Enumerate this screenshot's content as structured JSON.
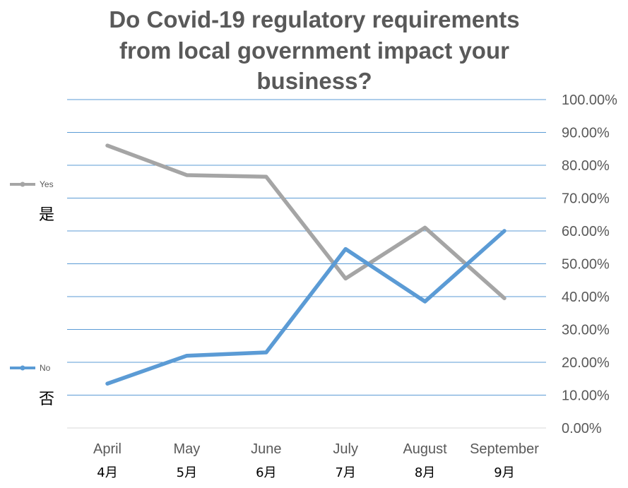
{
  "chart_data": {
    "type": "line",
    "title": "Do Covid-19 regulatory requirements\nfrom local government impact your\nbusiness?",
    "categories": [
      "April",
      "May",
      "June",
      "July",
      "August",
      "September"
    ],
    "categories_sub": [
      "4月",
      "5月",
      "6月",
      "7月",
      "8月",
      "9月"
    ],
    "series": [
      {
        "name": "Yes",
        "name_sub": "是",
        "color": "#A5A5A5",
        "values": [
          0.86,
          0.77,
          0.765,
          0.455,
          0.61,
          0.395
        ]
      },
      {
        "name": "No",
        "name_sub": "否",
        "color": "#5B9BD5",
        "values": [
          0.135,
          0.22,
          0.23,
          0.545,
          0.385,
          0.6
        ]
      }
    ],
    "yticks": [
      "0.00%",
      "10.00%",
      "20.00%",
      "30.00%",
      "40.00%",
      "50.00%",
      "60.00%",
      "70.00%",
      "80.00%",
      "90.00%",
      "100.00%"
    ],
    "ylim": [
      0,
      1
    ],
    "y_axis_side": "right",
    "legend_position": "left",
    "grid": true,
    "grid_color": "#5B9BD5"
  }
}
